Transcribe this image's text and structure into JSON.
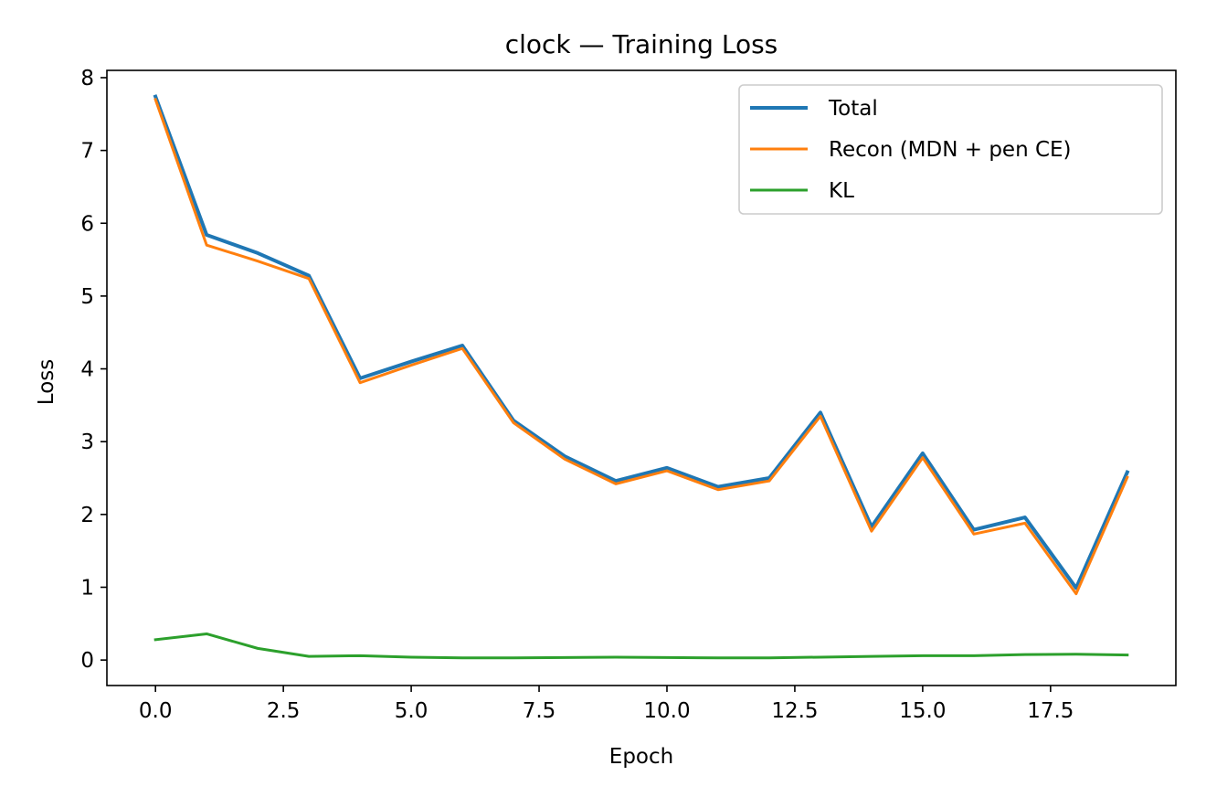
{
  "chart_data": {
    "type": "line",
    "title": "clock — Training Loss",
    "xlabel": "Epoch",
    "ylabel": "Loss",
    "xlim": [
      -0.95,
      19.95
    ],
    "ylim": [
      -0.35,
      8.1
    ],
    "xticks": [
      0,
      2.5,
      5,
      7.5,
      10,
      12.5,
      15,
      17.5
    ],
    "xtick_labels": [
      "0.0",
      "2.5",
      "5.0",
      "7.5",
      "10.0",
      "12.5",
      "15.0",
      "17.5"
    ],
    "yticks": [
      0,
      1,
      2,
      3,
      4,
      5,
      6,
      7,
      8
    ],
    "ytick_labels": [
      "0",
      "1",
      "2",
      "3",
      "4",
      "5",
      "6",
      "7",
      "8"
    ],
    "grid": false,
    "legend_position": "top-right",
    "x": [
      0,
      1,
      2,
      3,
      4,
      5,
      6,
      7,
      8,
      9,
      10,
      11,
      12,
      13,
      14,
      15,
      16,
      17,
      18,
      19
    ],
    "series": [
      {
        "name": "Total",
        "color": "#1f77b4",
        "values": [
          7.74,
          5.84,
          5.59,
          5.28,
          3.87,
          4.1,
          4.32,
          3.29,
          2.8,
          2.46,
          2.64,
          2.38,
          2.5,
          3.4,
          1.83,
          2.84,
          1.79,
          1.96,
          0.99,
          2.58
        ]
      },
      {
        "name": "Recon (MDN + pen CE)",
        "color": "#ff7f0e",
        "values": [
          7.7,
          5.7,
          5.48,
          5.24,
          3.81,
          4.05,
          4.28,
          3.26,
          2.76,
          2.42,
          2.6,
          2.34,
          2.46,
          3.35,
          1.77,
          2.78,
          1.73,
          1.88,
          0.91,
          2.51
        ]
      },
      {
        "name": "KL",
        "color": "#2ca02c",
        "values": [
          0.28,
          0.36,
          0.16,
          0.05,
          0.06,
          0.04,
          0.03,
          0.03,
          0.035,
          0.04,
          0.035,
          0.03,
          0.03,
          0.04,
          0.05,
          0.06,
          0.06,
          0.075,
          0.08,
          0.07
        ]
      }
    ]
  }
}
